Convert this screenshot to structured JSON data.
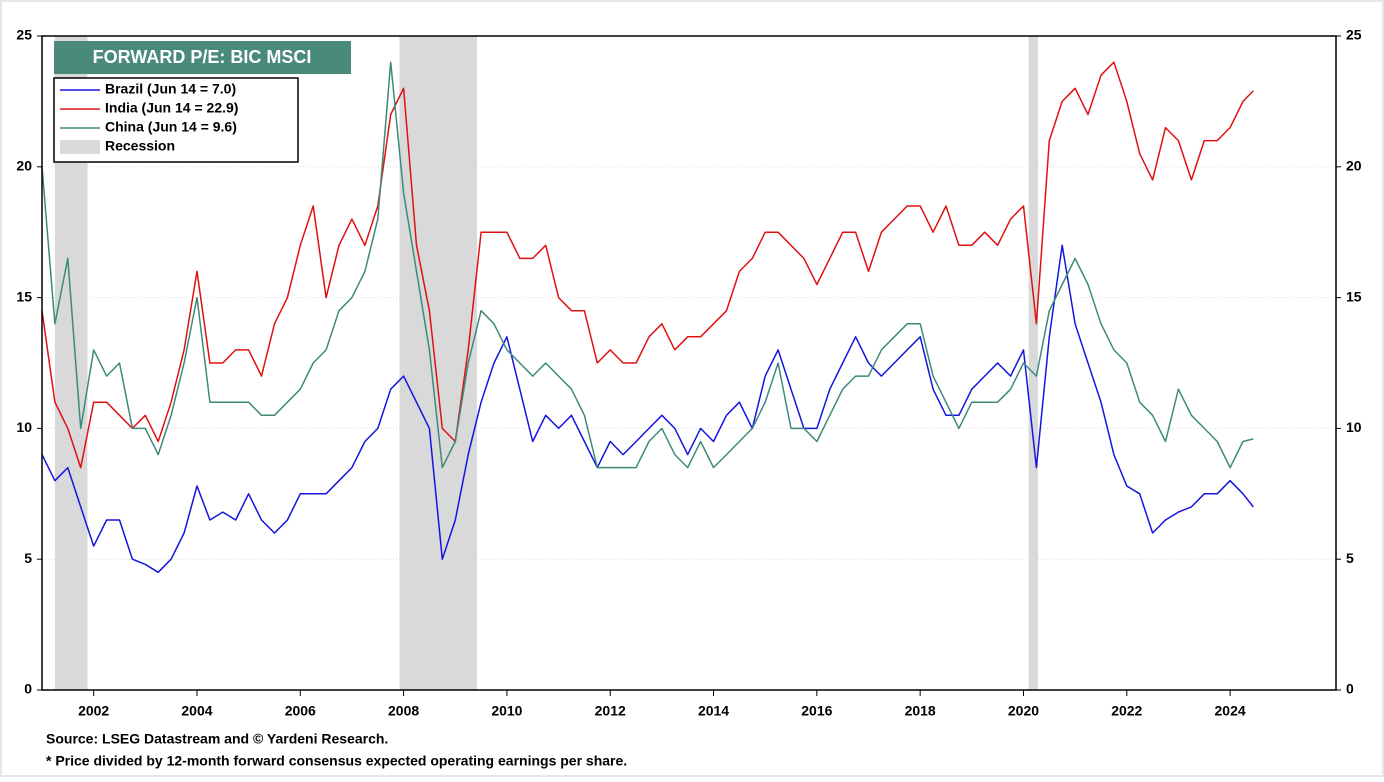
{
  "chart_data": {
    "type": "line",
    "title": "FORWARD P/E: BIC MSCI",
    "notes": [
      "Source: LSEG Datastream and © Yardeni Research.",
      "* Price divided by 12-month forward consensus expected operating earnings per share."
    ],
    "recession_label": "Recession",
    "recessions": [
      [
        2001.25,
        2001.88
      ],
      [
        2007.92,
        2009.42
      ],
      [
        2020.1,
        2020.28
      ]
    ],
    "recession_color": "#d9d9d9",
    "x": [
      2001.0,
      2001.25,
      2001.5,
      2001.75,
      2002.0,
      2002.25,
      2002.5,
      2002.75,
      2003.0,
      2003.25,
      2003.5,
      2003.75,
      2004.0,
      2004.25,
      2004.5,
      2004.75,
      2005.0,
      2005.25,
      2005.5,
      2005.75,
      2006.0,
      2006.25,
      2006.5,
      2006.75,
      2007.0,
      2007.25,
      2007.5,
      2007.75,
      2008.0,
      2008.25,
      2008.5,
      2008.75,
      2009.0,
      2009.25,
      2009.5,
      2009.75,
      2010.0,
      2010.25,
      2010.5,
      2010.75,
      2011.0,
      2011.25,
      2011.5,
      2011.75,
      2012.0,
      2012.25,
      2012.5,
      2012.75,
      2013.0,
      2013.25,
      2013.5,
      2013.75,
      2014.0,
      2014.25,
      2014.5,
      2014.75,
      2015.0,
      2015.25,
      2015.5,
      2015.75,
      2016.0,
      2016.25,
      2016.5,
      2016.75,
      2017.0,
      2017.25,
      2017.5,
      2017.75,
      2018.0,
      2018.25,
      2018.5,
      2018.75,
      2019.0,
      2019.25,
      2019.5,
      2019.75,
      2020.0,
      2020.25,
      2020.5,
      2020.75,
      2021.0,
      2021.25,
      2021.5,
      2021.75,
      2022.0,
      2022.25,
      2022.5,
      2022.75,
      2023.0,
      2023.25,
      2023.5,
      2023.75,
      2024.0,
      2024.25,
      2024.45
    ],
    "series": [
      {
        "name": "Brazil (Jun 14 = 7.0)",
        "color": "#1414e0",
        "values": [
          9.0,
          8.0,
          8.5,
          7.0,
          5.5,
          6.5,
          6.5,
          5.0,
          4.8,
          4.5,
          5.0,
          6.0,
          7.8,
          6.5,
          6.8,
          6.5,
          7.5,
          6.5,
          6.0,
          6.5,
          7.5,
          7.5,
          7.5,
          8.0,
          8.5,
          9.5,
          10.0,
          11.5,
          12.0,
          11.0,
          10.0,
          5.0,
          6.5,
          9.0,
          11.0,
          12.5,
          13.5,
          11.5,
          9.5,
          10.5,
          10.0,
          10.5,
          9.5,
          8.5,
          9.5,
          9.0,
          9.5,
          10.0,
          10.5,
          10.0,
          9.0,
          10.0,
          9.5,
          10.5,
          11.0,
          10.0,
          12.0,
          13.0,
          11.5,
          10.0,
          10.0,
          11.5,
          12.5,
          13.5,
          12.5,
          12.0,
          12.5,
          13.0,
          13.5,
          11.5,
          10.5,
          10.5,
          11.5,
          12.0,
          12.5,
          12.0,
          13.0,
          8.5,
          13.5,
          17.0,
          14.0,
          12.5,
          11.0,
          9.0,
          7.8,
          7.5,
          6.0,
          6.5,
          6.8,
          7.0,
          7.5,
          7.5,
          8.0,
          7.5,
          7.0
        ]
      },
      {
        "name": "India (Jun 14 = 22.9)",
        "color": "#e01010",
        "values": [
          14.5,
          11,
          10,
          8.5,
          11,
          11,
          10.5,
          10,
          10.5,
          9.5,
          11,
          13,
          16,
          12.5,
          12.5,
          13,
          13,
          12,
          14,
          15,
          17,
          18.5,
          15,
          17,
          18,
          17,
          18.5,
          22,
          23,
          17,
          14.5,
          10,
          9.5,
          13,
          17.5,
          17.5,
          17.5,
          16.5,
          16.5,
          17,
          15,
          14.5,
          14.5,
          12.5,
          13,
          12.5,
          12.5,
          13.5,
          14,
          13,
          13.5,
          13.5,
          14,
          14.5,
          16,
          16.5,
          17.5,
          17.5,
          17,
          16.5,
          15.5,
          16.5,
          17.5,
          17.5,
          16,
          17.5,
          18,
          18.5,
          18.5,
          17.5,
          18.5,
          17,
          17,
          17.5,
          17,
          18,
          18.5,
          14,
          21,
          22.5,
          23,
          22,
          23.5,
          24,
          22.5,
          20.5,
          19.5,
          21.5,
          21,
          19.5,
          21,
          21,
          21.5,
          22.5,
          22.9
        ]
      },
      {
        "name": "China (Jun 14 = 9.6)",
        "color": "#3d8a7c",
        "values": [
          20,
          14,
          16.5,
          10,
          13,
          12,
          12.5,
          10,
          10,
          9,
          10.5,
          12.5,
          15,
          11,
          11,
          11,
          11,
          10.5,
          10.5,
          11,
          11.5,
          12.5,
          13,
          14.5,
          15,
          16,
          18,
          24,
          19,
          16,
          13,
          8.5,
          9.5,
          12.5,
          14.5,
          14,
          13,
          12.5,
          12,
          12.5,
          12,
          11.5,
          10.5,
          8.5,
          8.5,
          8.5,
          8.5,
          9.5,
          10,
          9,
          8.5,
          9.5,
          8.5,
          9,
          9.5,
          10,
          11,
          12.5,
          10,
          10,
          9.5,
          10.5,
          11.5,
          12,
          12,
          13,
          13.5,
          14,
          14,
          12,
          11,
          10,
          11,
          11,
          11,
          11.5,
          12.5,
          12,
          14.5,
          15.5,
          16.5,
          15.5,
          14,
          13,
          12.5,
          11,
          10.5,
          9.5,
          11.5,
          10.5,
          10,
          9.5,
          8.5,
          9.5,
          9.6
        ]
      }
    ],
    "xlim": [
      2001,
      2026.05
    ],
    "xticks": [
      2002,
      2004,
      2006,
      2008,
      2010,
      2012,
      2014,
      2016,
      2018,
      2020,
      2022,
      2024
    ],
    "ylim": [
      0,
      25
    ],
    "yticks": [
      0,
      5,
      10,
      15,
      20,
      25
    ],
    "grid": true
  }
}
